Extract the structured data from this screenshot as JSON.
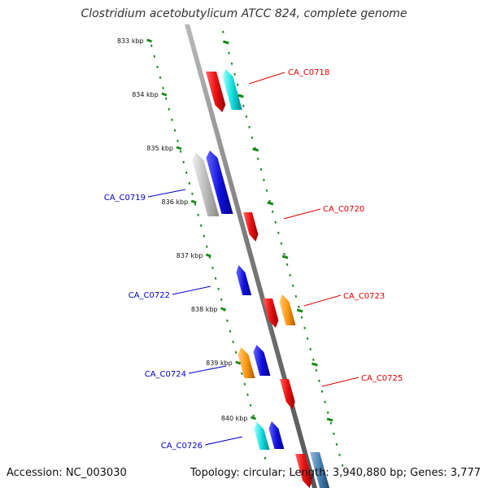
{
  "title": "Clostridium acetobutylicum ATCC 824, complete genome",
  "footer": {
    "accession": "Accession: NC_003030",
    "summary": "Topology: circular; Length: 3,940,880 bp; Genes: 3,777"
  },
  "scale_ticks": [
    {
      "label": "833 kbp"
    },
    {
      "label": "834 kbp"
    },
    {
      "label": "835 kbp"
    },
    {
      "label": "836 kbp"
    },
    {
      "label": "837 kbp"
    },
    {
      "label": "838 kbp"
    },
    {
      "label": "839 kbp"
    },
    {
      "label": "840 kbp"
    }
  ],
  "gene_labels": [
    {
      "text": "CA_C0718",
      "strand": "right",
      "color": "#dd0000"
    },
    {
      "text": "CA_C0719",
      "strand": "left",
      "color": "#0000cc"
    },
    {
      "text": "CA_C0720",
      "strand": "right",
      "color": "#dd0000"
    },
    {
      "text": "CA_C0722",
      "strand": "left",
      "color": "#0000cc"
    },
    {
      "text": "CA_C0723",
      "strand": "right",
      "color": "#dd0000"
    },
    {
      "text": "CA_C0724",
      "strand": "left",
      "color": "#0000cc"
    },
    {
      "text": "CA_C0725",
      "strand": "right",
      "color": "#dd0000"
    },
    {
      "text": "CA_C0726",
      "strand": "left",
      "color": "#0000cc"
    }
  ],
  "colors": {
    "backbone": "#888888",
    "dots": "#1a8a1a",
    "red": "#ee1111",
    "blue": "#1111dd",
    "cyan": "#11dddd",
    "orange": "#ff9911",
    "gray": "#bbbbbb",
    "steelblue": "#4682b4"
  }
}
